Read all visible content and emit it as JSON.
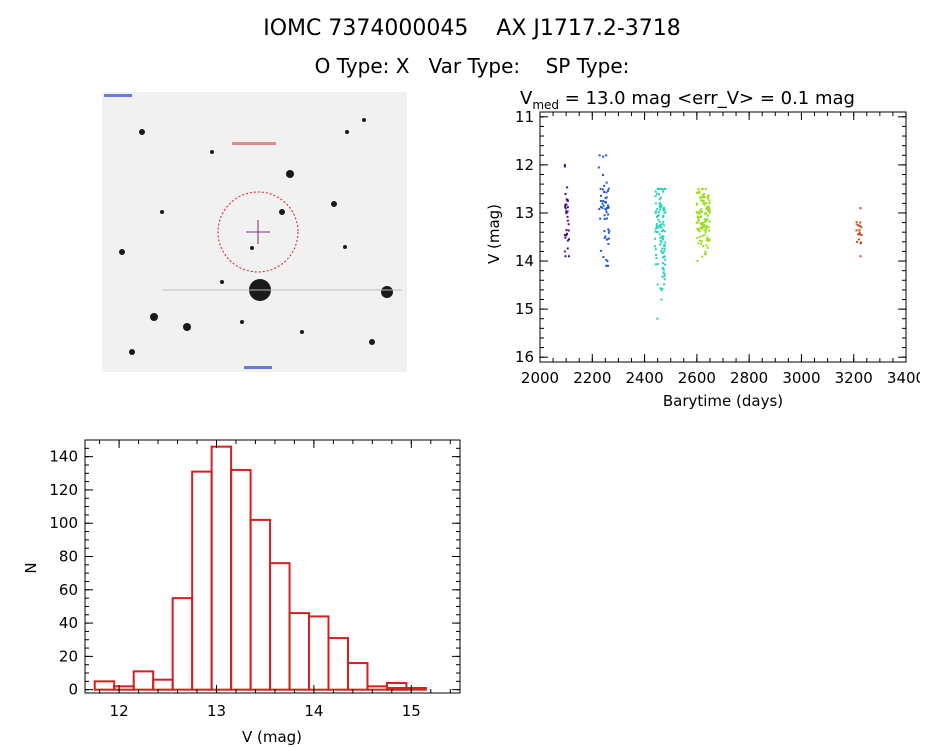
{
  "header": {
    "title": "IOMC 7374000045    AX J1717.2-3718",
    "subtitle": "O Type: X   Var Type:    SP Type:"
  },
  "finder_image": {
    "description_colors": {
      "background": "#f1f1f1",
      "stars": "#1a1a1a",
      "circle": "#cc2222",
      "crosshair": "#7a2a7a"
    }
  },
  "chart_data": [
    {
      "type": "scatter",
      "title_prefix": "V",
      "title_subscript": "med",
      "title_rest": " = 13.0 mag <err_V> = 0.1 mag",
      "xlabel": "Barytime (days)",
      "ylabel": "V (mag)",
      "xlim": [
        2000,
        3400
      ],
      "ylim": [
        16.1,
        10.9
      ],
      "y_inverted": true,
      "xticks": [
        2000,
        2200,
        2400,
        2600,
        2800,
        3000,
        3200,
        3400
      ],
      "yticks": [
        11,
        12,
        13,
        14,
        15,
        16
      ],
      "series": [
        {
          "x_range": [
            2095,
            2112
          ],
          "y_min": 12.0,
          "y_max": 13.9,
          "y_center": 13.0,
          "count": 35,
          "color": "#4b0f82"
        },
        {
          "x_range": [
            2225,
            2265
          ],
          "y_min": 11.8,
          "y_max": 14.1,
          "y_center": 13.0,
          "count": 55,
          "color": "#2255d8"
        },
        {
          "x_range": [
            2440,
            2480
          ],
          "y_min": 12.5,
          "y_max": 15.2,
          "y_center": 13.4,
          "count": 110,
          "color": "#22d4b8"
        },
        {
          "x_range": [
            2600,
            2650
          ],
          "y_min": 12.5,
          "y_max": 14.0,
          "y_center": 13.1,
          "count": 120,
          "color": "#9ade1e"
        },
        {
          "x_range": [
            3210,
            3230
          ],
          "y_min": 12.9,
          "y_max": 13.9,
          "y_center": 13.4,
          "count": 18,
          "color": "#cc4a1a"
        }
      ]
    },
    {
      "type": "bar",
      "xlabel": "V (mag)",
      "ylabel": "N",
      "xlim": [
        11.65,
        15.5
      ],
      "ylim": [
        -2,
        150
      ],
      "xticks": [
        12,
        13,
        14,
        15
      ],
      "yticks": [
        0,
        20,
        40,
        60,
        80,
        100,
        120,
        140
      ],
      "bin_width": 0.2,
      "bin_left_edges": [
        11.75,
        11.95,
        12.15,
        12.35,
        12.55,
        12.75,
        12.95,
        13.15,
        13.35,
        13.55,
        13.75,
        13.95,
        14.15,
        14.35,
        14.55,
        14.75,
        14.95
      ],
      "values": [
        5,
        2,
        11,
        6,
        55,
        131,
        146,
        132,
        102,
        76,
        46,
        44,
        31,
        16,
        2,
        4,
        2
      ],
      "extra_bins": [
        {
          "left": 14.75,
          "value": 1
        },
        {
          "left": 14.95,
          "value": 1
        }
      ],
      "bar_color": "#d42020"
    }
  ]
}
